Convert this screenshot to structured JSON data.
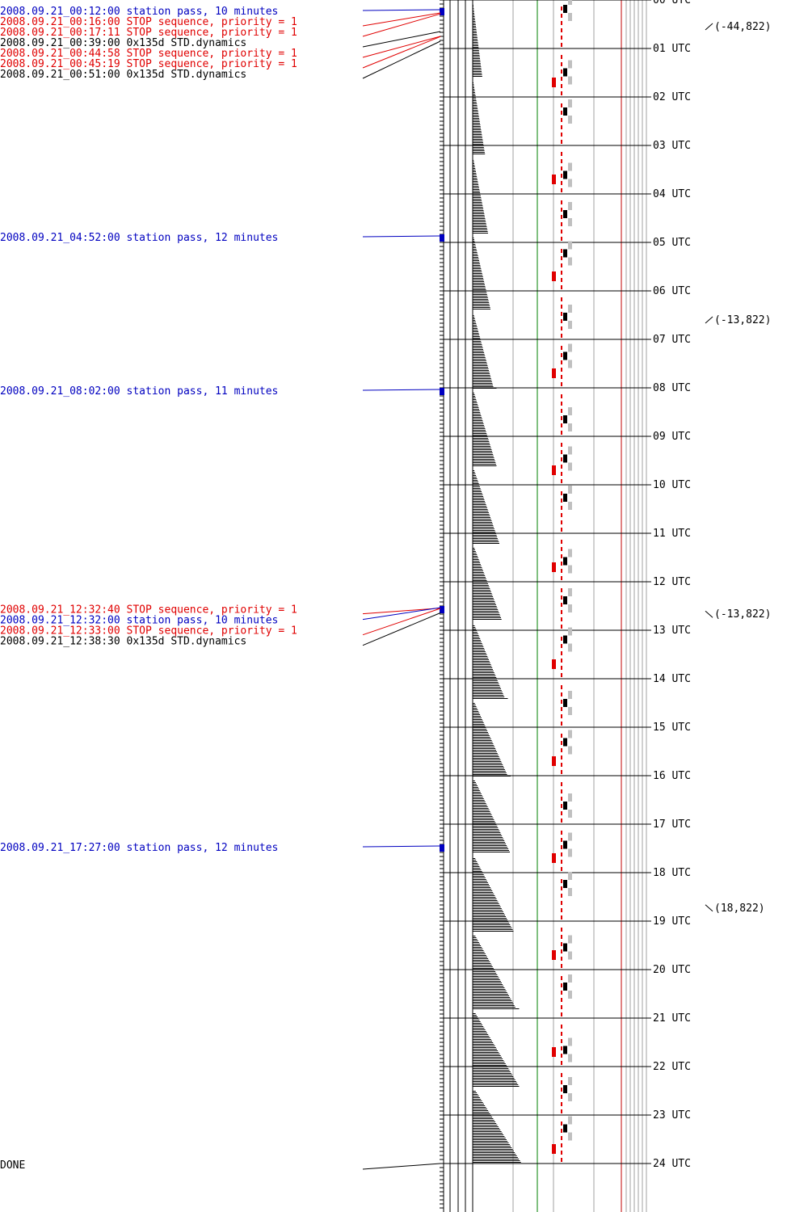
{
  "events": [
    {
      "text": "2008.09.21_00:12:00 station pass, 10 minutes",
      "kind": "pass",
      "hours": 0.2,
      "dur_min": 10
    },
    {
      "text": "2008.09.21_00:16:00 STOP sequence, priority = 1",
      "kind": "stop",
      "hours": 0.2667
    },
    {
      "text": "2008.09.21_00:17:11 STOP sequence, priority = 1",
      "kind": "stop",
      "hours": 0.2864
    },
    {
      "text": "2008.09.21_00:39:00 0x135d STD.dynamics",
      "kind": "dynamics",
      "hours": 0.65
    },
    {
      "text": "2008.09.21_00:44:58 STOP sequence, priority = 1",
      "kind": "stop",
      "hours": 0.7494
    },
    {
      "text": "2008.09.21_00:45:19 STOP sequence, priority = 1",
      "kind": "stop",
      "hours": 0.7553
    },
    {
      "text": "2008.09.21_00:51:00 0x135d STD.dynamics",
      "kind": "dynamics",
      "hours": 0.85
    },
    {
      "text": "2008.09.21_04:52:00 station pass, 12 minutes",
      "kind": "pass",
      "hours": 4.8667,
      "dur_min": 12
    },
    {
      "text": "2008.09.21_08:02:00 station pass, 11 minutes",
      "kind": "pass",
      "hours": 8.0333,
      "dur_min": 11
    },
    {
      "text": "2008.09.21_12:32:40 STOP sequence, priority = 1",
      "kind": "stop",
      "hours": 12.5444
    },
    {
      "text": "2008.09.21_12:32:00 station pass, 10 minutes",
      "kind": "pass",
      "hours": 12.5333,
      "dur_min": 10
    },
    {
      "text": "2008.09.21_12:33:00 STOP sequence, priority = 1",
      "kind": "stop",
      "hours": 12.55
    },
    {
      "text": "2008.09.21_12:38:30 0x135d STD.dynamics",
      "kind": "dynamics",
      "hours": 12.6417
    },
    {
      "text": "2008.09.21_17:27:00 station pass, 12 minutes",
      "kind": "pass",
      "hours": 17.45,
      "dur_min": 12
    },
    {
      "text": "DONE",
      "kind": "done",
      "hours": 24
    }
  ],
  "hour_labels": [
    "00 UTC",
    "01 UTC",
    "02 UTC",
    "03 UTC",
    "04 UTC",
    "05 UTC",
    "06 UTC",
    "07 UTC",
    "08 UTC",
    "09 UTC",
    "10 UTC",
    "11 UTC",
    "12 UTC",
    "13 UTC",
    "14 UTC",
    "15 UTC",
    "16 UTC",
    "17 UTC",
    "18 UTC",
    "19 UTC",
    "20 UTC",
    "21 UTC",
    "22 UTC",
    "23 UTC",
    "24 UTC"
  ],
  "annotations": [
    {
      "text": "(-44,822)",
      "hours": 0.55,
      "dir": "up"
    },
    {
      "text": "(-13,822)",
      "hours": 6.6,
      "dir": "up"
    },
    {
      "text": "(-13,822)",
      "hours": 12.67,
      "dir": "down"
    },
    {
      "text": "(18,822)",
      "hours": 18.73,
      "dir": "down"
    }
  ],
  "colors": {
    "text": "#000000",
    "pass": "#0000c0",
    "stop": "#e00000",
    "grid": "#000000",
    "guide_gray": "#a0a0a0",
    "guide_green": "#008000",
    "guide_red": "#c00000",
    "marker_gray": "#c0c0c0"
  },
  "sawtooth_cycle_hours": 1.6,
  "done": true
}
